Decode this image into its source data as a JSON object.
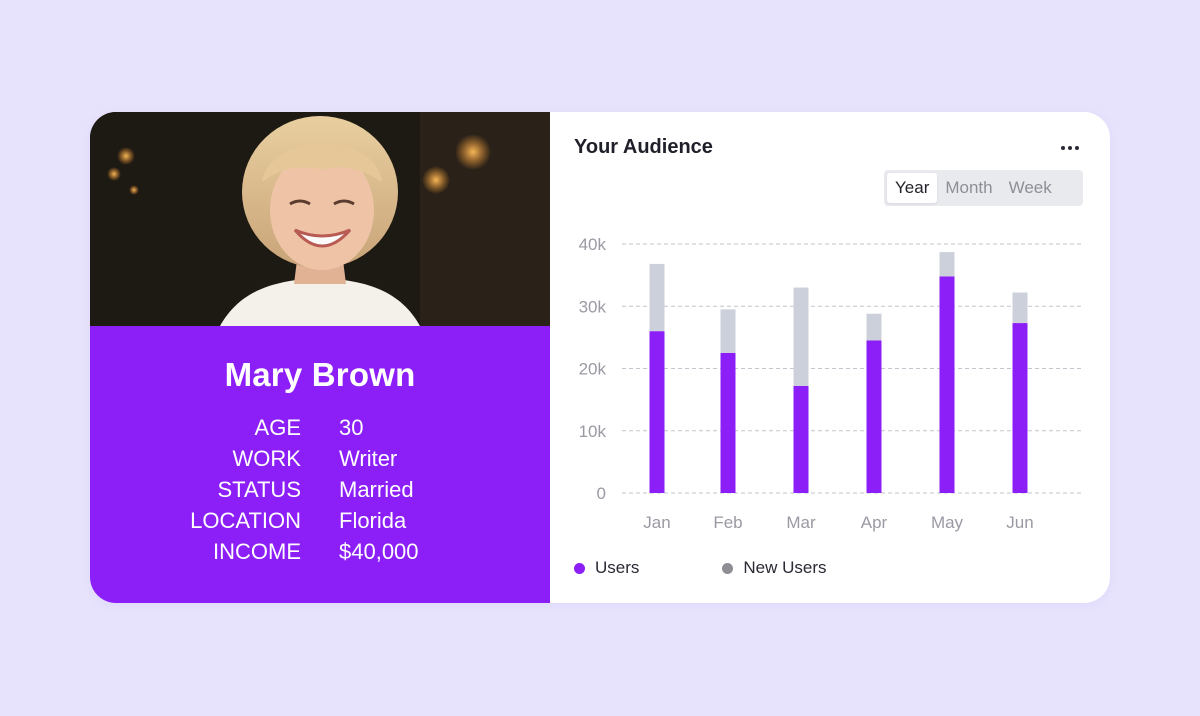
{
  "profile": {
    "name": "Mary Brown",
    "fields": [
      {
        "label": "AGE",
        "value": "30"
      },
      {
        "label": "WORK",
        "value": "Writer"
      },
      {
        "label": "STATUS",
        "value": "Married"
      },
      {
        "label": "LOCATION",
        "value": "Florida"
      },
      {
        "label": "INCOME",
        "value": "$40,000"
      }
    ]
  },
  "audience": {
    "title": "Your Audience",
    "more_icon": "more-horizontal-icon",
    "tabs": [
      {
        "label": "Year",
        "active": true
      },
      {
        "label": "Month",
        "active": false
      },
      {
        "label": "Week",
        "active": false
      }
    ],
    "legend": [
      {
        "label": "Users",
        "color": "#8c1ef7"
      },
      {
        "label": "New Users",
        "color": "#8e8e93"
      }
    ]
  },
  "colors": {
    "accent": "#8c1ef7",
    "new_users_bar": "#ccd0da",
    "background": "#e7e3fd"
  },
  "chart_data": {
    "type": "bar",
    "stacked": true,
    "categories": [
      "Jan",
      "Feb",
      "Mar",
      "Apr",
      "May",
      "Jun"
    ],
    "series": [
      {
        "name": "Users",
        "values": [
          26000,
          22500,
          17200,
          24500,
          34800,
          27300
        ]
      },
      {
        "name": "New Users",
        "values": [
          10800,
          7000,
          15800,
          4300,
          3900,
          4900
        ]
      }
    ],
    "yticks": [
      "0",
      "10k",
      "20k",
      "30k",
      "40k"
    ],
    "ylim": [
      0,
      40000
    ],
    "grid": true,
    "legend_position": "bottom-left"
  }
}
